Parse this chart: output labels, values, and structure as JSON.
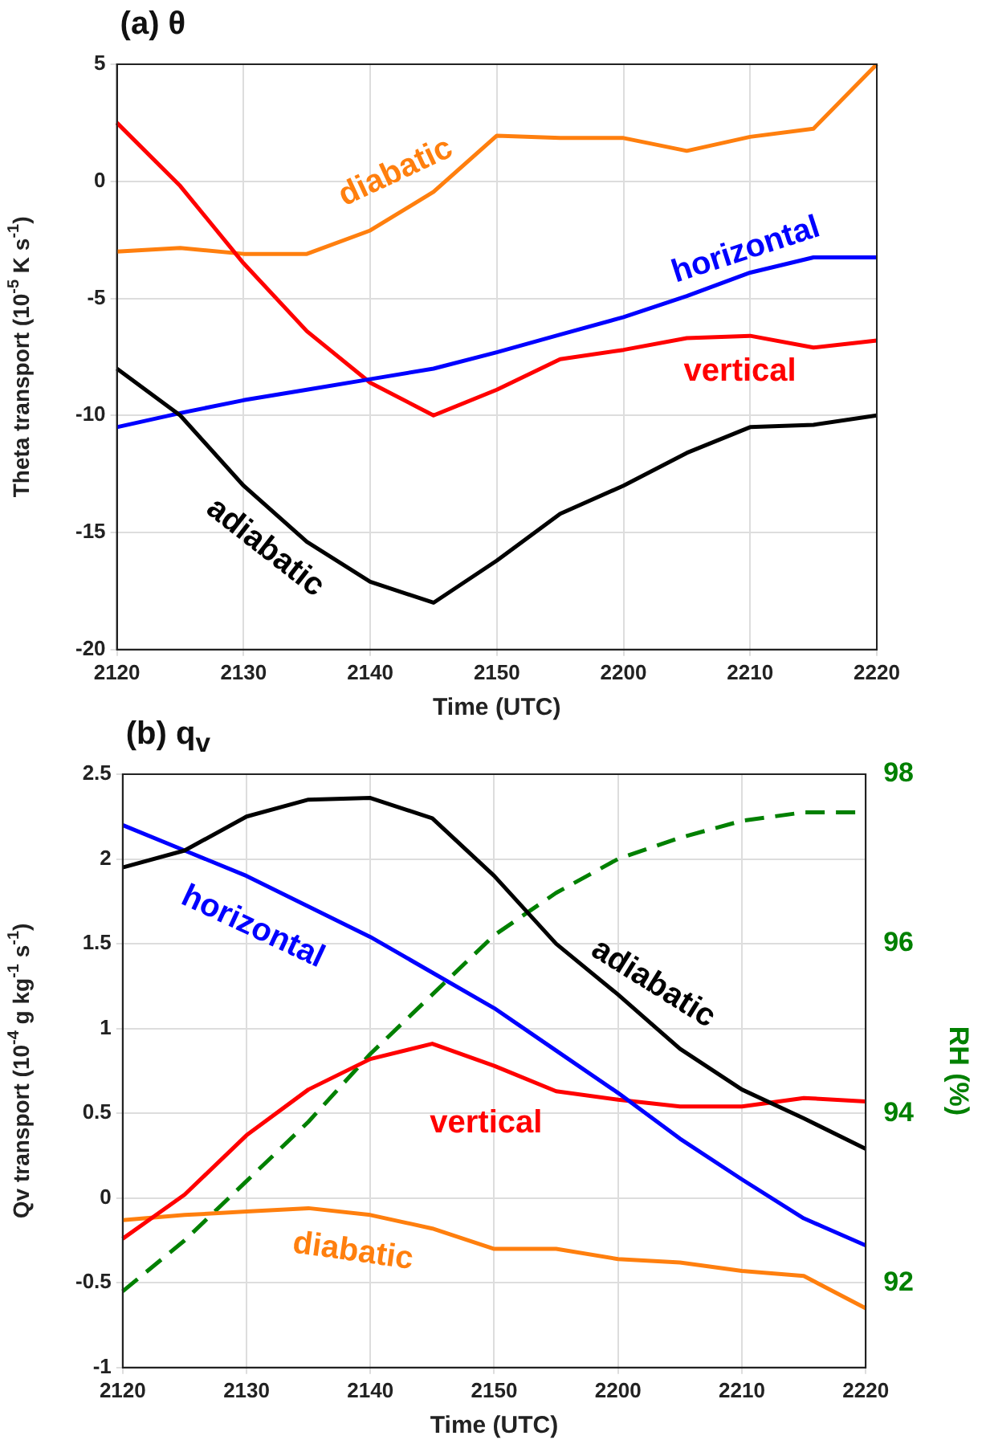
{
  "chart_data": [
    {
      "type": "line",
      "title": "(a)  θ",
      "xlabel": "Time (UTC)",
      "ylabel": "Theta transport (10$^{-5}$ K s$^{-1}$)",
      "categories": [
        "2120",
        null,
        "2130",
        null,
        "2140",
        null,
        "2150",
        null,
        "2200",
        null,
        "2210",
        null,
        "2220"
      ],
      "ylim": [
        -20,
        5
      ],
      "yticks": [
        -20,
        -15,
        -10,
        -5,
        0,
        5
      ],
      "grid": true,
      "marker": "none",
      "series": [
        {
          "name": "adiabatic",
          "color": "#000000",
          "values": [
            -8.0,
            -10.0,
            -13.0,
            -15.4,
            -17.1,
            -18.0,
            -16.2,
            -14.2,
            -13.0,
            -11.6,
            -10.5,
            -10.4,
            -10.0
          ]
        },
        {
          "name": "horizontal",
          "color": "#0000ff",
          "values": [
            -10.5,
            -9.9,
            -9.35,
            -8.9,
            -8.45,
            -8.0,
            -7.3,
            -6.55,
            -5.8,
            -4.9,
            -3.9,
            -3.25,
            -3.25
          ]
        },
        {
          "name": "vertical",
          "color": "#ff0000",
          "values": [
            2.5,
            -0.2,
            -3.5,
            -6.4,
            -8.6,
            -10.0,
            -8.9,
            -7.6,
            -7.2,
            -6.7,
            -6.6,
            -7.1,
            -6.8
          ]
        },
        {
          "name": "diabatic",
          "color": "#ff7f0e",
          "values": [
            -3.0,
            -2.85,
            -3.1,
            -3.1,
            -2.1,
            -0.45,
            1.95,
            1.85,
            1.85,
            1.3,
            1.9,
            2.25,
            5.0
          ]
        }
      ]
    },
    {
      "type": "line",
      "title": "(b)  q$_{v}$",
      "xlabel": "Time (UTC)",
      "ylabel": "Qv transport (10$^{-4}$ g kg$^{-1}$ s$^{-1}$)",
      "y2label": "RH (%)",
      "categories": [
        "2120",
        null,
        "2130",
        null,
        "2140",
        null,
        "2150",
        null,
        "2200",
        null,
        "2210",
        null,
        "2220"
      ],
      "ylim": [
        -1,
        2.5
      ],
      "yticks": [
        -1,
        -0.5,
        0,
        0.5,
        1,
        1.5,
        2,
        2.5
      ],
      "y2lim": [
        91,
        98
      ],
      "y2ticks": [
        92,
        94,
        96,
        98
      ],
      "grid": true,
      "marker": "none",
      "series": [
        {
          "name": "adiabatic",
          "color": "#000000",
          "values": [
            1.95,
            2.05,
            2.25,
            2.35,
            2.36,
            2.24,
            1.9,
            1.5,
            1.2,
            0.88,
            0.64,
            0.47,
            0.29
          ]
        },
        {
          "name": "horizontal",
          "color": "#0000ff",
          "values": [
            2.2,
            2.05,
            1.9,
            1.72,
            1.54,
            1.33,
            1.12,
            0.87,
            0.62,
            0.35,
            0.11,
            -0.12,
            -0.28
          ]
        },
        {
          "name": "vertical",
          "color": "#ff0000",
          "values": [
            -0.24,
            0.02,
            0.37,
            0.64,
            0.82,
            0.91,
            0.78,
            0.63,
            0.58,
            0.54,
            0.54,
            0.59,
            0.57
          ]
        },
        {
          "name": "diabatic",
          "color": "#ff7f0e",
          "values": [
            -0.13,
            -0.1,
            -0.08,
            -0.06,
            -0.1,
            -0.18,
            -0.3,
            -0.3,
            -0.36,
            -0.38,
            -0.43,
            -0.46,
            -0.65
          ]
        },
        {
          "color": "#008000",
          "axis": "y2",
          "line_style": "dashed",
          "values": [
            91.9,
            92.5,
            93.2,
            93.9,
            94.7,
            95.4,
            96.1,
            96.6,
            97.0,
            97.25,
            97.45,
            97.55,
            97.55
          ]
        }
      ]
    }
  ]
}
